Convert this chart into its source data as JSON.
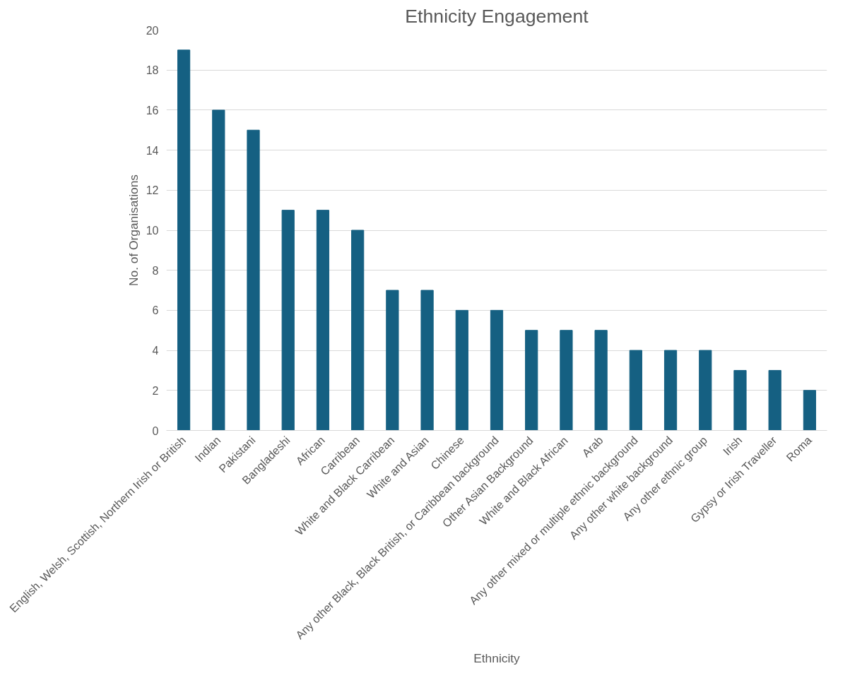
{
  "chart_data": {
    "type": "bar",
    "title": "Ethnicity Engagement",
    "xlabel": "Ethnicity",
    "ylabel": "No. of Organisations",
    "categories": [
      "English, Welsh, Scottish, Northern Irish or British",
      "Indian",
      "Pakistani",
      "Bangladeshi",
      "African",
      "Carribean",
      "White and Black Carribean",
      "White and Asian",
      "Chinese",
      "Any other Black, Black British, or Caribbean background",
      "Other Asian Background",
      "White and Black African",
      "Arab",
      "Any other mixed or multiple ethnic background",
      "Any other white background",
      "Any other ethnic group",
      "Irish",
      "Gypsy or Irish Traveller",
      "Roma"
    ],
    "values": [
      19,
      16,
      15,
      11,
      11,
      10,
      7,
      7,
      6,
      6,
      5,
      5,
      5,
      4,
      4,
      4,
      3,
      3,
      2
    ],
    "color": "#156082",
    "ylim": [
      0,
      20
    ],
    "yticks": [
      0,
      2,
      4,
      6,
      8,
      10,
      12,
      14,
      16,
      18,
      20
    ],
    "grid": "y"
  }
}
